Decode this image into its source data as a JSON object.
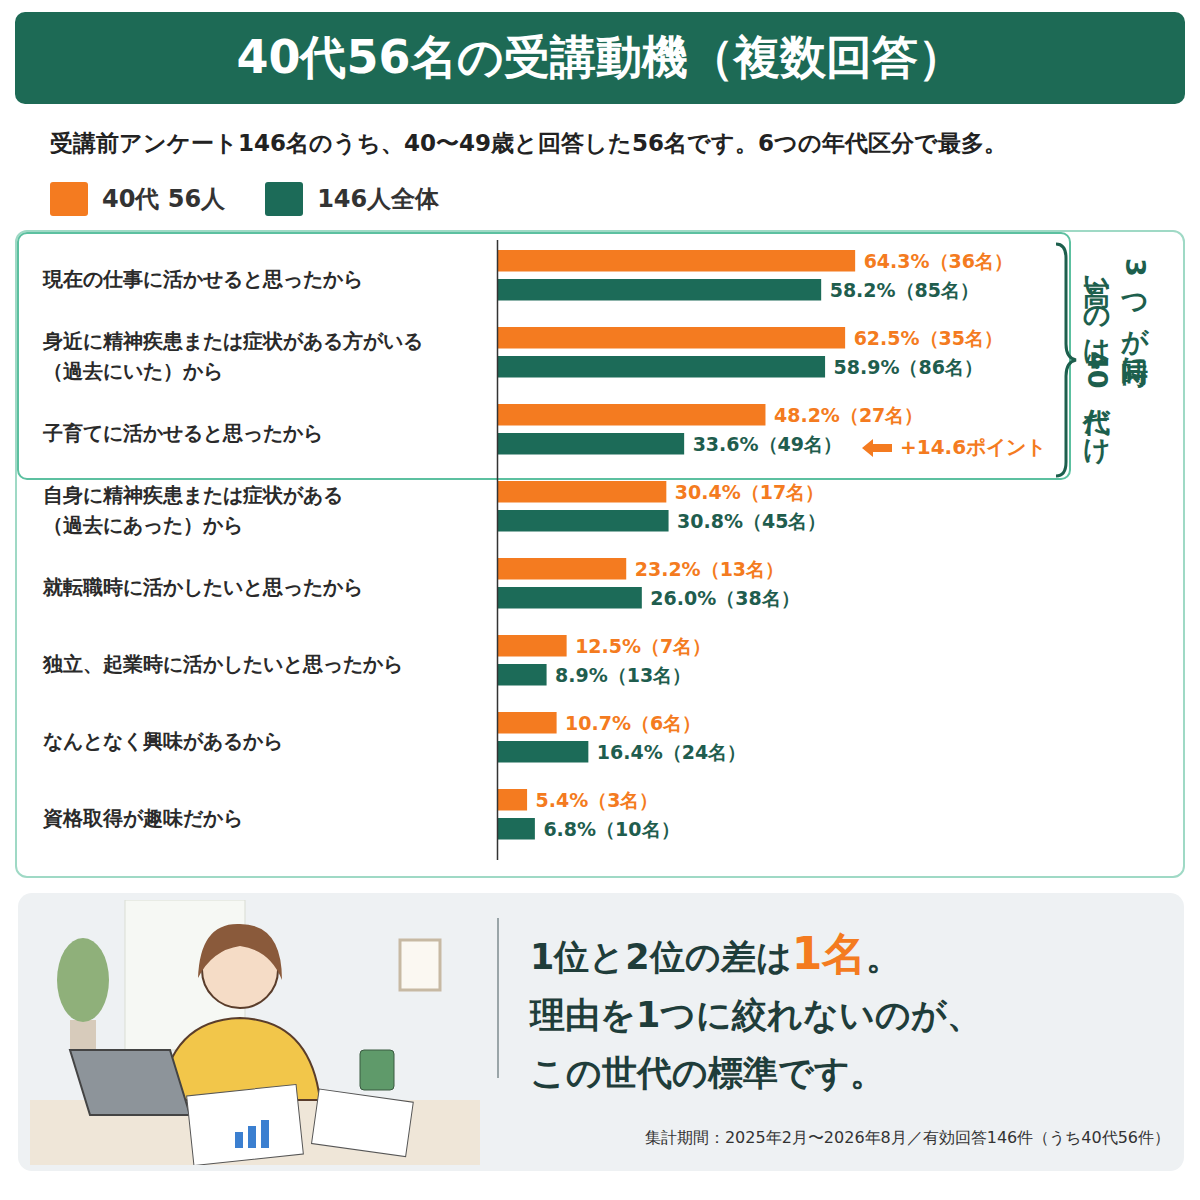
{
  "chart_data": {
    "type": "bar",
    "orientation": "horizontal",
    "title": "40代56名の受講動機（複数回答）",
    "subtitle": "受講前アンケート146名のうち、40〜49歳と回答した56名です。6つの年代区分で最多。",
    "categories": [
      "現在の仕事に活かせると思ったから",
      "身近に精神疾患または症状がある方がいる\n（過去にいた）から",
      "子育てに活かせると思ったから",
      "自身に精神疾患または症状がある\n（過去にあった）から",
      "就転職時に活かしたいと思ったから",
      "独立、起業時に活かしたいと思ったから",
      "なんとなく興味があるから",
      "資格取得が趣味だから"
    ],
    "series": [
      {
        "name": "40代 56人",
        "color": "#f47b20",
        "values": [
          64.3,
          62.5,
          48.2,
          30.4,
          23.2,
          12.5,
          10.7,
          5.4
        ],
        "value_labels": [
          "64.3%（36名）",
          "62.5%（35名）",
          "48.2%（27名）",
          "30.4%（17名）",
          "23.2%（13名）",
          "12.5%（7名）",
          "10.7%（6名）",
          "5.4%（3名）"
        ]
      },
      {
        "name": "146人全体",
        "color": "#1c6b58",
        "values": [
          58.2,
          58.9,
          33.6,
          30.8,
          26.0,
          8.9,
          16.4,
          6.8
        ],
        "value_labels": [
          "58.2%（85名）",
          "58.9%（86名）",
          "33.6%（49名）",
          "30.8%（45名）",
          "26.0%（38名）",
          "8.9%（13名）",
          "16.4%（24名）",
          "6.8%（10名）"
        ]
      }
    ],
    "xlim": [
      0,
      100
    ],
    "xticks": [],
    "tick_labels": "y",
    "data_labels": true,
    "legend": "top-left",
    "annotations": {
      "brace_text": [
        "3つが同時に",
        "高いのは・40代だけ"
      ],
      "difference": "+14.6ポイント",
      "message_lines": [
        "1位と2位の差は1名。",
        "理由を1つに絞れないのが、",
        "この世代の標準です。"
      ],
      "message_highlight": "1名",
      "footnote": "集計期間：2025年2月〜2026年8月／有効回答146件（うち40代56件）"
    }
  }
}
